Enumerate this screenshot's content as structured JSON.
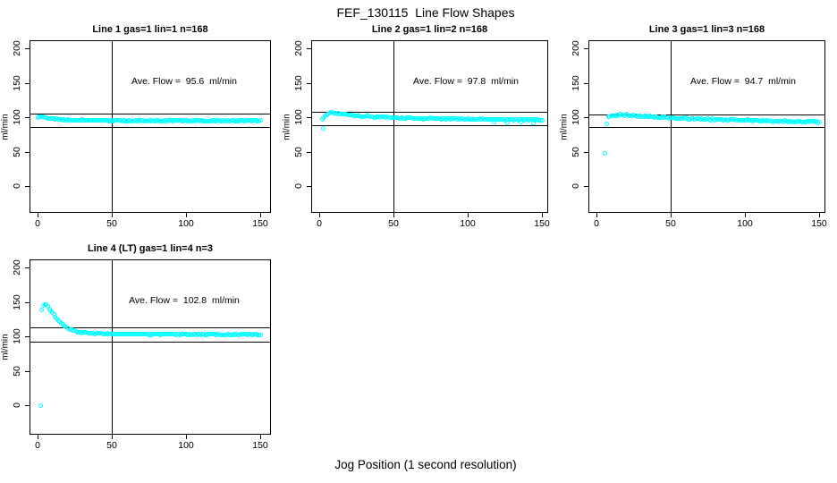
{
  "title": "FEF_130115  Line Flow Shapes",
  "xlabel": "Jog Position (1 second resolution)",
  "colors": {
    "marker": "#00FFFF",
    "axis": "#000000",
    "background": "#ffffff"
  },
  "chart_data": [
    {
      "type": "scatter",
      "title": "Line 1 gas=1 lin=1 n=168",
      "annotation": "Ave. Flow =  95.6  ml/min",
      "ave_flow_ml_min": 95.6,
      "n": 168,
      "ylabel": "ml/min",
      "xticks": [
        0,
        50,
        100,
        150
      ],
      "yticks": [
        0,
        50,
        100,
        150,
        200
      ],
      "xlim": [
        0,
        155
      ],
      "ylim": [
        -45,
        210
      ],
      "marker": {
        "shape": "open-circle",
        "color": "#00FFFF"
      },
      "ref_lines": {
        "upper": 105.2,
        "lower": 86.0,
        "vertical_x": 50
      },
      "band_amp": 0.7,
      "keypoints": [
        [
          0,
          99.5
        ],
        [
          2,
          100.8
        ],
        [
          4,
          100.5
        ],
        [
          7,
          99.0
        ],
        [
          10,
          97.6
        ],
        [
          14,
          96.5
        ],
        [
          20,
          95.8
        ],
        [
          35,
          95.3
        ],
        [
          60,
          95.1
        ],
        [
          90,
          94.9
        ],
        [
          120,
          94.7
        ],
        [
          150,
          94.5
        ]
      ],
      "outliers": []
    },
    {
      "type": "scatter",
      "title": "Line 2 gas=1 lin=2 n=168",
      "annotation": "Ave. Flow =  97.8  ml/min",
      "ave_flow_ml_min": 97.8,
      "n": 168,
      "ylabel": "ml/min",
      "xticks": [
        0,
        50,
        100,
        150
      ],
      "yticks": [
        0,
        50,
        100,
        150,
        200
      ],
      "xlim": [
        0,
        155
      ],
      "ylim": [
        -45,
        210
      ],
      "marker": {
        "shape": "open-circle",
        "color": "#00FFFF"
      },
      "ref_lines": {
        "upper": 107.6,
        "lower": 88.0,
        "vertical_x": 50
      },
      "band_amp": 0.8,
      "keypoints": [
        [
          2,
          97.0
        ],
        [
          4,
          103.0
        ],
        [
          7,
          106.0
        ],
        [
          10,
          106.5
        ],
        [
          15,
          105.0
        ],
        [
          25,
          102.0
        ],
        [
          40,
          100.0
        ],
        [
          60,
          98.5
        ],
        [
          90,
          97.5
        ],
        [
          120,
          96.8
        ],
        [
          150,
          96.2
        ]
      ],
      "outliers": [
        [
          3,
          84.0
        ],
        [
          118,
          92.5
        ],
        [
          127,
          92.0
        ],
        [
          136,
          92.3
        ],
        [
          144,
          92.0
        ]
      ]
    },
    {
      "type": "scatter",
      "title": "Line 3 gas=1 lin=3 n=168",
      "annotation": "Ave. Flow =  94.7  ml/min",
      "ave_flow_ml_min": 94.7,
      "n": 168,
      "ylabel": "ml/min",
      "xticks": [
        0,
        50,
        100,
        150
      ],
      "yticks": [
        0,
        50,
        100,
        150,
        200
      ],
      "xlim": [
        0,
        155
      ],
      "ylim": [
        -45,
        210
      ],
      "marker": {
        "shape": "open-circle",
        "color": "#00FFFF"
      },
      "ref_lines": {
        "upper": 104.2,
        "lower": 85.2,
        "vertical_x": 50
      },
      "band_amp": 1.0,
      "keypoints": [
        [
          8,
          100.0
        ],
        [
          10,
          102.0
        ],
        [
          14,
          103.0
        ],
        [
          20,
          103.0
        ],
        [
          30,
          101.5
        ],
        [
          45,
          99.5
        ],
        [
          60,
          98.0
        ],
        [
          80,
          96.5
        ],
        [
          100,
          95.5
        ],
        [
          120,
          94.3
        ],
        [
          135,
          93.5
        ],
        [
          150,
          92.8
        ]
      ],
      "outliers": [
        [
          6,
          48.0
        ],
        [
          7,
          90.0
        ]
      ]
    },
    {
      "type": "scatter",
      "title": "Line 4 (LT) gas=1 lin=4 n=3",
      "annotation": "Ave. Flow =  102.8  ml/min",
      "ave_flow_ml_min": 102.8,
      "n": 3,
      "ylabel": "ml/min",
      "xticks": [
        0,
        50,
        100,
        150
      ],
      "yticks": [
        0,
        50,
        100,
        150,
        200
      ],
      "xlim": [
        0,
        155
      ],
      "ylim": [
        -45,
        210
      ],
      "marker": {
        "shape": "open-circle",
        "color": "#00FFFF"
      },
      "ref_lines": {
        "upper": 113.1,
        "lower": 92.5,
        "vertical_x": 50
      },
      "band_amp": 0.6,
      "keypoints": [
        [
          3,
          139
        ],
        [
          4,
          144
        ],
        [
          5,
          147
        ],
        [
          6,
          146
        ],
        [
          7,
          143
        ],
        [
          9,
          137
        ],
        [
          11,
          131
        ],
        [
          13,
          126
        ],
        [
          15,
          121
        ],
        [
          17,
          117
        ],
        [
          19,
          113.5
        ],
        [
          22,
          110
        ],
        [
          25,
          107.5
        ],
        [
          28,
          106
        ],
        [
          32,
          105
        ],
        [
          38,
          104.3
        ],
        [
          45,
          103.8
        ],
        [
          60,
          103.3
        ],
        [
          80,
          103
        ],
        [
          100,
          102.8
        ],
        [
          120,
          102.6
        ],
        [
          150,
          102.3
        ]
      ],
      "outliers": [
        [
          2,
          0
        ]
      ]
    }
  ]
}
